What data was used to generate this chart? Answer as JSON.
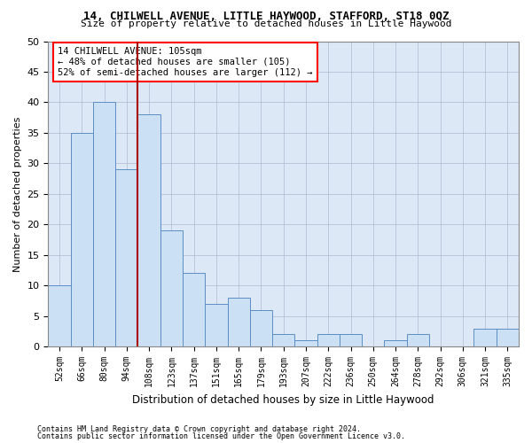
{
  "title1": "14, CHILWELL AVENUE, LITTLE HAYWOOD, STAFFORD, ST18 0QZ",
  "title2": "Size of property relative to detached houses in Little Haywood",
  "xlabel": "Distribution of detached houses by size in Little Haywood",
  "ylabel": "Number of detached properties",
  "footer1": "Contains HM Land Registry data © Crown copyright and database right 2024.",
  "footer2": "Contains public sector information licensed under the Open Government Licence v3.0.",
  "categories": [
    "52sqm",
    "66sqm",
    "80sqm",
    "94sqm",
    "108sqm",
    "123sqm",
    "137sqm",
    "151sqm",
    "165sqm",
    "179sqm",
    "193sqm",
    "207sqm",
    "222sqm",
    "236sqm",
    "250sqm",
    "264sqm",
    "278sqm",
    "292sqm",
    "306sqm",
    "321sqm",
    "335sqm"
  ],
  "values": [
    10,
    35,
    40,
    29,
    38,
    19,
    12,
    7,
    8,
    6,
    2,
    1,
    2,
    2,
    0,
    1,
    2,
    0,
    0,
    3,
    3
  ],
  "bar_color": "#cce0f5",
  "bar_edge_color": "#5b8ec4",
  "vline_color": "#aa0000",
  "vline_x": 4.5,
  "ylim": [
    0,
    50
  ],
  "yticks": [
    0,
    5,
    10,
    15,
    20,
    25,
    30,
    35,
    40,
    45,
    50
  ],
  "annotation_title": "14 CHILWELL AVENUE: 105sqm",
  "annotation_line1": "← 48% of detached houses are smaller (105)",
  "annotation_line2": "52% of semi-detached houses are larger (112) →",
  "grid_color": "#b0b8d0",
  "bg_color": "#dce8f5"
}
